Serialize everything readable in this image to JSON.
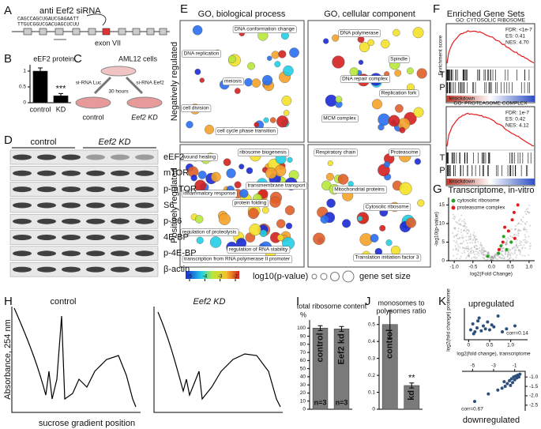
{
  "figure": {
    "panel_labels": [
      "A",
      "B",
      "C",
      "D",
      "E",
      "F",
      "G",
      "H",
      "I",
      "J",
      "K"
    ],
    "A": {
      "title": "anti Eef2 siRNA",
      "seq_top": "CAGCCAGCUGAUCGAGAATT",
      "seq_bottom": "TTGUCGGUCGACUAGCUCUU",
      "exon": "exon VII"
    },
    "C": {
      "cells": "AML12 cells",
      "left": "si-RNA Luc",
      "right": "si-RNA Eef2",
      "time": "30 hours",
      "control": "control",
      "kd": "Eef2 KD"
    },
    "D": {
      "groups": [
        "control",
        "Eef2 KD"
      ],
      "proteins": [
        "eEF2",
        "mTOR",
        "p-mTOR",
        "S6",
        "p-S6",
        "4E-BP",
        "p-4E-BP",
        "β-actin"
      ]
    },
    "E": {
      "col_titles": [
        "GO, biological process",
        "GO, cellular component"
      ],
      "row_titles": [
        "Negatively regulated",
        "Positively regulated"
      ],
      "bio_negative": [
        "DNA conformation change",
        "DNA replication",
        "meiosis",
        "cell division",
        "cell cycle phase transition"
      ],
      "cell_negative": [
        "DNA polymerase",
        "Spindle",
        "DNA repair complex",
        "Replication fork",
        "MCM complex"
      ],
      "bio_positive": [
        "ribosome biogenesis",
        "wound healing",
        "transmembrane transport",
        "inflammatory response",
        "protein folding",
        "regulation of proteolysis",
        "regulation of RNA stability",
        "transcription from RNA polymerase II promoter"
      ],
      "cell_positive": [
        "Respiratory chain",
        "Proteasome",
        "Mitochondrial proteins",
        "Cytosolic ribosome",
        "Translation initiation factor 3"
      ],
      "colorbar_label": "log10(p-value)",
      "colorbar_ticks": [
        -5,
        -4,
        -3,
        -2
      ],
      "size_label": "gene set size"
    },
    "F": {
      "title": "Enriched Gene Sets",
      "y_label": "Enrichment score",
      "track_labels": [
        "T",
        "P"
      ],
      "bar_label": "knockdown",
      "sets": [
        {
          "name": "GO: CYTOSOLIC RIBOSOME",
          "stats": [
            "FDR: <1e-7",
            "ES: 0.41",
            "NES: 4.70"
          ]
        },
        {
          "name": "GO: PROTEASOME COMPLEX",
          "stats": [
            "FDR: 1e-7",
            "ES: 0.42",
            "NES: 4.12"
          ]
        }
      ]
    },
    "H": {
      "titles": [
        "control",
        "Eef2 KD"
      ],
      "y_label": "Absorbance, 254 nm",
      "x_label": "sucrose gradient position"
    }
  },
  "chart_data": [
    {
      "type": "bar",
      "title": "eEF2 protein",
      "categories": [
        "control",
        "KD"
      ],
      "values": [
        1.0,
        0.22
      ],
      "errors": [
        0.1,
        0.07
      ],
      "ylim": [
        0,
        1.2
      ],
      "yticks": [
        0,
        0.5,
        1
      ],
      "color": "#000000",
      "annotation": "***"
    },
    {
      "type": "bar",
      "title": "total ribosome content",
      "unit": "%",
      "categories": [
        "control",
        "Eef2 kd"
      ],
      "values": [
        100,
        99
      ],
      "errors": [
        3,
        3
      ],
      "ylim": [
        0,
        110
      ],
      "yticks": [
        0,
        10,
        20,
        30,
        40,
        50,
        60,
        70,
        80,
        90,
        100
      ],
      "color": "#7a7a7a",
      "bar_notes": [
        "n=3",
        "n=3"
      ]
    },
    {
      "type": "bar",
      "title": [
        "monosomes to",
        "polysomes ratio"
      ],
      "categories": [
        "control",
        "kd"
      ],
      "values": [
        0.5,
        0.14
      ],
      "errors": [
        0.08,
        0.015
      ],
      "ylim": [
        0,
        0.55
      ],
      "yticks": [
        0,
        0.1,
        0.2,
        0.3,
        0.4,
        0.5
      ],
      "color": "#7a7a7a",
      "annotation": "**"
    },
    {
      "type": "scatter",
      "title": "Transcriptome, in-vitro",
      "x_label": "log2(Fold Change)",
      "y_label": "-log10(p-value)",
      "xlim": [
        -1.15,
        1.15
      ],
      "ylim": [
        0,
        17
      ],
      "xticks": [
        {
          "value": -1,
          "label": "-1.0"
        },
        -0.5,
        {
          "value": 0,
          "label": "0.0"
        },
        0.5,
        {
          "value": 1,
          "label": "1.0"
        }
      ],
      "yticks": [
        0,
        5,
        10,
        15
      ],
      "series": [
        {
          "name": "cytosolic ribosome",
          "color": "#2ca02c",
          "x": [
            0.18,
            0.25,
            0.32,
            0.4,
            0.52,
            -0.1
          ],
          "values": [
            2,
            4,
            6.5,
            3,
            5,
            1.2
          ]
        },
        {
          "name": "proteasome complex",
          "color": "#e31a1c",
          "x": [
            0.2,
            0.3,
            0.45,
            0.55,
            0.6,
            0.7,
            0.35,
            0.62
          ],
          "values": [
            3,
            5,
            8,
            11,
            13,
            15,
            9,
            6
          ]
        }
      ]
    },
    {
      "type": "scatter",
      "title": "upregulated",
      "annotation": "corr=0.14",
      "x_label": "log2(fold change), transcriptome",
      "y_label": "log2(fold change) proteome",
      "xlim": [
        -0.1,
        1.4
      ],
      "ylim": [
        -0.3,
        1.3
      ],
      "xticks": [
        0,
        0.5,
        {
          "value": 1,
          "label": "1.0"
        }
      ],
      "color": "#2c4f7c",
      "x": [
        0.05,
        0.1,
        0.15,
        0.2,
        0.25,
        0.3,
        0.35,
        0.4,
        0.45,
        0.5,
        0.6,
        0.7,
        0.8,
        1.1,
        0.12,
        0.22,
        0.55,
        0.9
      ],
      "values": [
        0.2,
        0.5,
        0.1,
        0.3,
        0.8,
        0.15,
        0.4,
        0.25,
        0.6,
        0.2,
        0.35,
        0.9,
        0.1,
        0.4,
        0.0,
        0.65,
        0.45,
        0.25
      ]
    },
    {
      "type": "scatter",
      "title": "downregulated",
      "annotation": "corr=0.67",
      "color": "#2c4f7c",
      "xlim": [
        -6,
        0
      ],
      "ylim": [
        -2.8,
        -0.7
      ],
      "xticks": [
        -5,
        -3,
        -1
      ],
      "yticks": [
        {
          "value": -1,
          "label": "-1.0"
        },
        -1.5,
        {
          "value": -2,
          "label": "-2.0"
        },
        -2.5
      ],
      "x": [
        -4.8,
        -3.5,
        -2.6,
        -2.2,
        -1.9,
        -1.7,
        -1.5,
        -1.3,
        -1.2,
        -1.1,
        -1.0,
        -0.9,
        -0.8,
        -0.7,
        -0.6,
        -1.4,
        -2.0,
        -0.5
      ],
      "values": [
        -2.3,
        -1.9,
        -1.7,
        -1.6,
        -1.5,
        -1.35,
        -1.2,
        -1.1,
        -1.3,
        -1.0,
        -1.15,
        -0.95,
        -1.05,
        -0.9,
        -1.0,
        -1.45,
        -1.25,
        -0.85
      ]
    }
  ]
}
